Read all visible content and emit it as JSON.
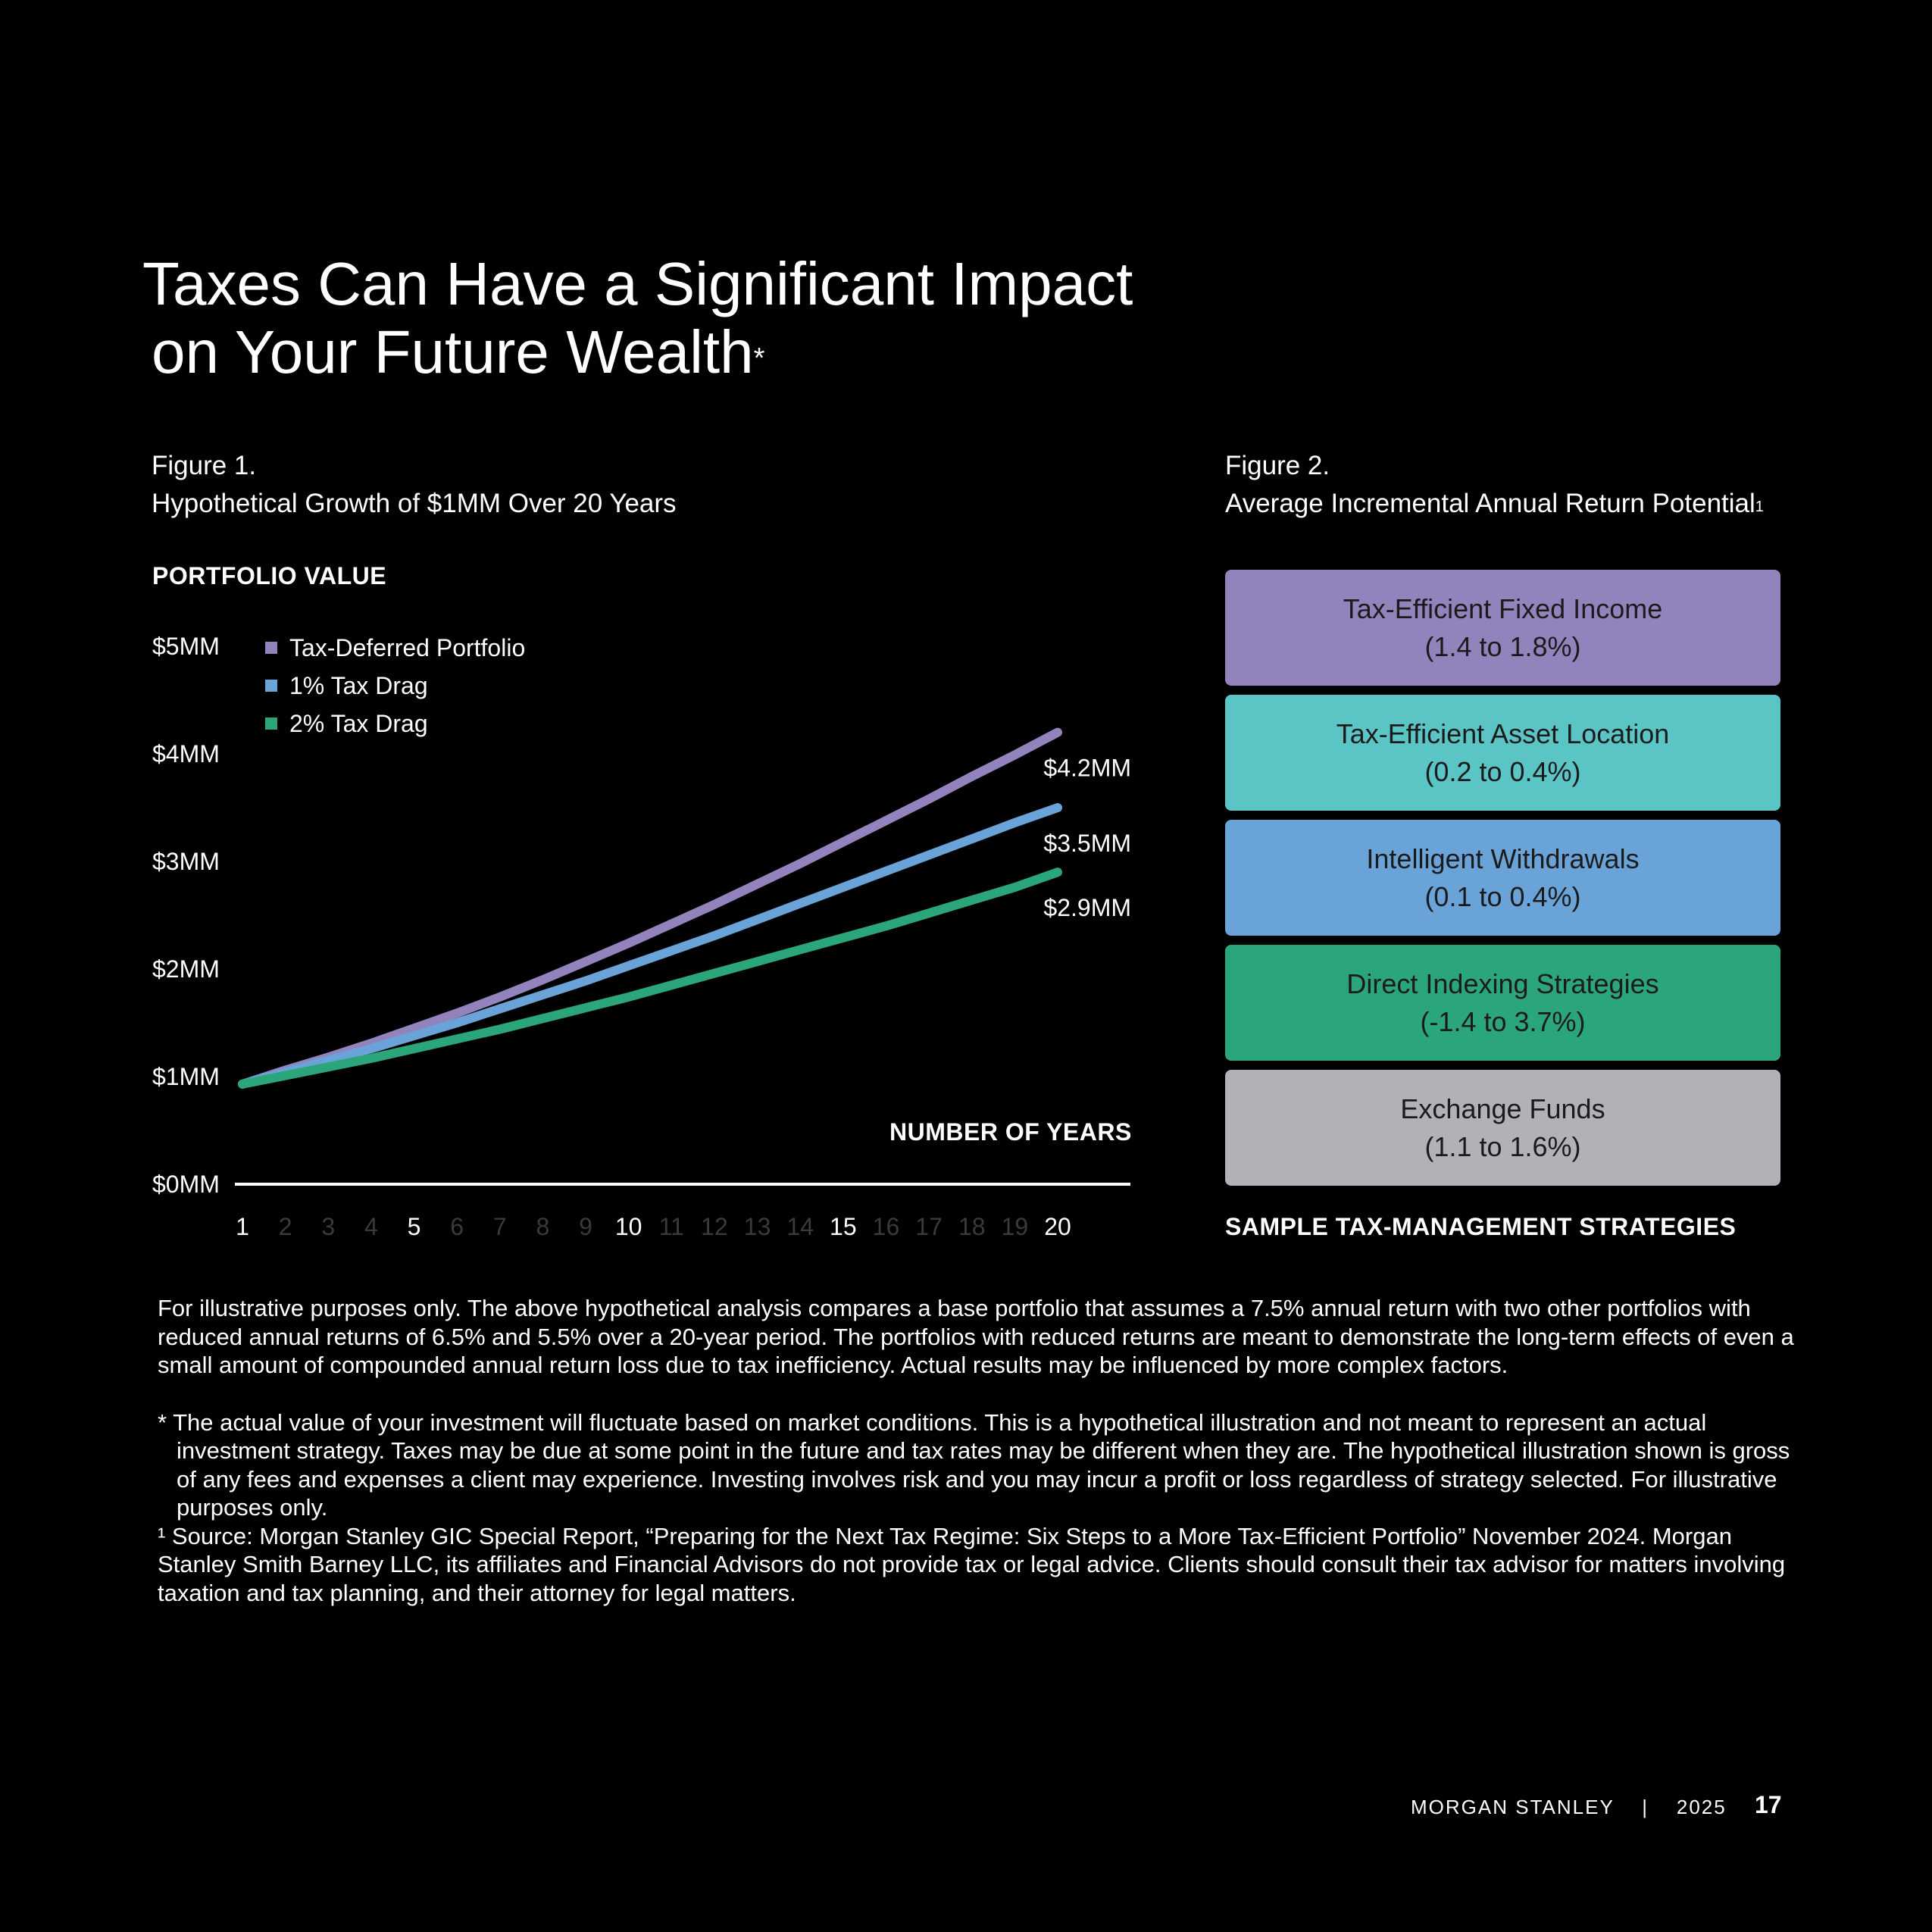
{
  "page": {
    "title_line1": "Taxes Can Have a Significant Impact",
    "title_line2": "on Your Future Wealth",
    "title_mark": "*",
    "footer_brand": "MORGAN STANLEY",
    "footer_sep": "|",
    "footer_year": "2025",
    "page_number": "17"
  },
  "figure1": {
    "label": "Figure 1.",
    "caption": "Hypothetical Growth of $1MM Over 20 Years",
    "y_axis_title": "PORTFOLIO VALUE",
    "x_axis_title": "NUMBER OF YEARS"
  },
  "figure2": {
    "label": "Figure 2.",
    "caption": "Average Incremental Annual Return Potential",
    "caption_mark": "1",
    "footer_caption": "SAMPLE TAX-MANAGEMENT STRATEGIES",
    "strategies": [
      {
        "name": "Tax-Efficient Fixed Income",
        "range": "(1.4 to 1.8%)",
        "color": "#9283bd"
      },
      {
        "name": "Tax-Efficient Asset Location",
        "range": "(0.2 to 0.4%)",
        "color": "#5bc5c5"
      },
      {
        "name": "Intelligent Withdrawals",
        "range": "(0.1 to 0.4%)",
        "color": "#6aa3d8"
      },
      {
        "name": "Direct Indexing Strategies",
        "range": "(-1.4 to 3.7%)",
        "color": "#2ba57a"
      },
      {
        "name": "Exchange Funds",
        "range": "(1.1 to 1.6%)",
        "color": "#b1b2b6"
      }
    ]
  },
  "chart_data": {
    "type": "line",
    "title": "Hypothetical Growth of $1MM Over 20 Years",
    "xlabel": "NUMBER OF YEARS",
    "ylabel": "PORTFOLIO VALUE",
    "x": [
      1,
      2,
      3,
      4,
      5,
      6,
      7,
      8,
      9,
      10,
      11,
      12,
      13,
      14,
      15,
      16,
      17,
      18,
      19,
      20
    ],
    "x_tick_labels": [
      "1",
      "2",
      "3",
      "4",
      "5",
      "6",
      "7",
      "8",
      "9",
      "10",
      "11",
      "12",
      "13",
      "14",
      "15",
      "16",
      "17",
      "18",
      "19",
      "20"
    ],
    "x_tick_emphasis": [
      1,
      5,
      10,
      15,
      20
    ],
    "y_ticks": [
      0,
      1,
      2,
      3,
      4,
      5
    ],
    "y_tick_labels": [
      "$0MM",
      "$1MM",
      "$2MM",
      "$3MM",
      "$4MM",
      "$5MM"
    ],
    "ylim": [
      0,
      5
    ],
    "legend_position": "top-left",
    "grid": false,
    "series": [
      {
        "name": "Tax-Deferred Portfolio",
        "color": "#9283bd",
        "values": [
          0.93,
          1.06,
          1.18,
          1.31,
          1.45,
          1.59,
          1.74,
          1.9,
          2.07,
          2.24,
          2.42,
          2.6,
          2.79,
          2.98,
          3.18,
          3.38,
          3.58,
          3.79,
          3.99,
          4.2
        ],
        "end_label": "$4.2MM"
      },
      {
        "name": "1% Tax Drag",
        "color": "#6aa3d8",
        "values": [
          0.93,
          1.04,
          1.15,
          1.26,
          1.38,
          1.5,
          1.63,
          1.76,
          1.89,
          2.03,
          2.17,
          2.31,
          2.46,
          2.61,
          2.76,
          2.91,
          3.06,
          3.21,
          3.36,
          3.5
        ],
        "end_label": "$3.5MM"
      },
      {
        "name": "2% Tax Drag",
        "color": "#2ba57a",
        "values": [
          0.93,
          1.01,
          1.09,
          1.17,
          1.26,
          1.35,
          1.44,
          1.54,
          1.64,
          1.74,
          1.85,
          1.96,
          2.07,
          2.18,
          2.29,
          2.4,
          2.52,
          2.64,
          2.76,
          2.9
        ],
        "end_label": "$2.9MM"
      }
    ]
  },
  "notes": {
    "disclaimer": "For illustrative purposes only. The above hypothetical analysis compares a base portfolio that assumes a 7.5% annual return with two other portfolios with reduced annual returns of 6.5% and 5.5% over a 20-year period. The portfolios with reduced returns are meant to demonstrate the long-term effects of even a small amount of compounded annual return loss due to tax inefficiency. Actual results may be influenced by more complex factors.",
    "asterisk_note": "* The actual value of your investment will fluctuate based on market conditions. This is a hypothetical illustration and not meant to represent an actual investment strategy. Taxes may be due at some point in the future and tax rates may be different when they are. The hypothetical illustration shown is gross of any fees and expenses a client may experience. Investing involves risk and you may incur a profit or loss regardless of strategy selected. For illustrative purposes only.",
    "source_note": "¹ Source: Morgan Stanley GIC Special Report, “Preparing for the Next Tax Regime: Six Steps to a More Tax-Efficient Portfolio” November 2024. Morgan Stanley Smith Barney LLC, its affiliates and Financial Advisors do not provide tax or legal advice. Clients should consult their tax advisor for matters involving taxation and tax planning, and their attorney for legal matters."
  }
}
